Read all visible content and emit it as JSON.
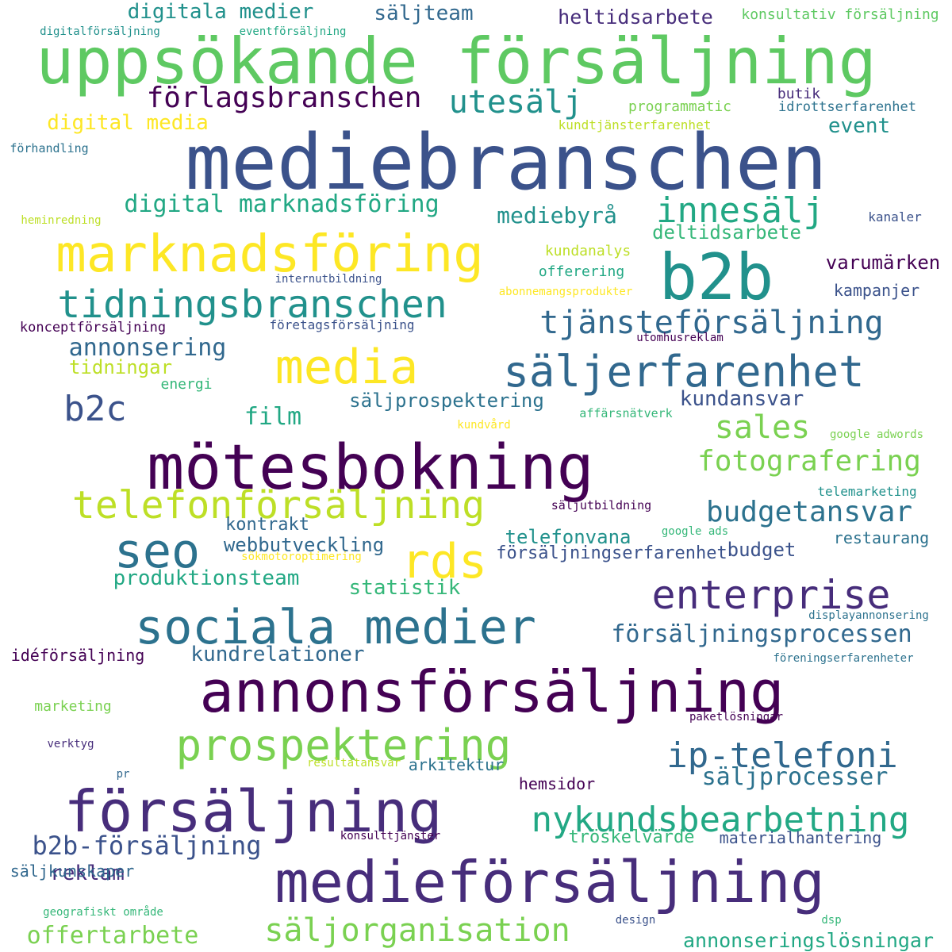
{
  "words": [
    {
      "text": "mediebranschen",
      "color": "#3b528b"
    },
    {
      "text": "uppsökande försäljning",
      "color": "#5ec962"
    },
    {
      "text": "mötesbokning",
      "color": "#440154"
    },
    {
      "text": "annonsförsäljning",
      "color": "#440154"
    },
    {
      "text": "medieförsäljning",
      "color": "#472d7b"
    },
    {
      "text": "försäljning",
      "color": "#472d7b"
    },
    {
      "text": "marknadsföring",
      "color": "#fde725"
    },
    {
      "text": "b2b",
      "color": "#21918c"
    },
    {
      "text": "sociala medier",
      "color": "#2c728e"
    },
    {
      "text": "media",
      "color": "#fde725"
    },
    {
      "text": "prospektering",
      "color": "#7ad151"
    },
    {
      "text": "säljerfarenhet",
      "color": "#31688e"
    },
    {
      "text": "enterprise",
      "color": "#472d7b"
    },
    {
      "text": "telefonförsäljning",
      "color": "#bddf26"
    },
    {
      "text": "tidningsbranschen",
      "color": "#21918c"
    },
    {
      "text": "seo",
      "color": "#2c728e"
    },
    {
      "text": "rds",
      "color": "#fde725"
    },
    {
      "text": "nykundsbearbetning",
      "color": "#22a884"
    },
    {
      "text": "ip-telefoni",
      "color": "#31688e"
    },
    {
      "text": "tjänsteförsäljning",
      "color": "#31688e"
    },
    {
      "text": "säljorganisation",
      "color": "#7ad151"
    },
    {
      "text": "förlagsbranschen",
      "color": "#440154"
    },
    {
      "text": "innesälj",
      "color": "#22a884"
    },
    {
      "text": "utesälj",
      "color": "#21918c"
    },
    {
      "text": "b2c",
      "color": "#3b528b"
    },
    {
      "text": "fotografering",
      "color": "#7ad151"
    },
    {
      "text": "budgetansvar",
      "color": "#2c728e"
    },
    {
      "text": "b2b-försäljning",
      "color": "#3b528b"
    },
    {
      "text": "försäljningsprocessen",
      "color": "#31688e"
    },
    {
      "text": "sales",
      "color": "#7ad151"
    },
    {
      "text": "offertarbete",
      "color": "#7ad151"
    },
    {
      "text": "digital marknadsföring",
      "color": "#22a884"
    },
    {
      "text": "annonsering",
      "color": "#31688e"
    },
    {
      "text": "säljprocesser",
      "color": "#2c728e"
    },
    {
      "text": "produktionsteam",
      "color": "#22a884"
    },
    {
      "text": "digitala medier",
      "color": "#21918c"
    },
    {
      "text": "annonseringslösningar",
      "color": "#22a884"
    },
    {
      "text": "heltidsarbete",
      "color": "#472d7b"
    },
    {
      "text": "kundrelationer",
      "color": "#31688e"
    },
    {
      "text": "reklam",
      "color": "#472d7b"
    },
    {
      "text": "film",
      "color": "#22a884"
    },
    {
      "text": "mediebyrå",
      "color": "#21918c"
    },
    {
      "text": "statistik",
      "color": "#35b779"
    },
    {
      "text": "digital media",
      "color": "#fde725"
    },
    {
      "text": "kundansvar",
      "color": "#3b528b"
    },
    {
      "text": "säljteam",
      "color": "#31688e"
    },
    {
      "text": "event",
      "color": "#21918c"
    },
    {
      "text": "telefonvana",
      "color": "#21918c"
    },
    {
      "text": "säljprospektering",
      "color": "#2c728e"
    },
    {
      "text": "varumärken",
      "color": "#440154"
    },
    {
      "text": "webbutveckling",
      "color": "#31688e"
    },
    {
      "text": "budget",
      "color": "#3b528b"
    },
    {
      "text": "deltidsarbete",
      "color": "#35b779"
    },
    {
      "text": "tidningar",
      "color": "#bddf26"
    },
    {
      "text": "försäljningserfarenhet",
      "color": "#3b528b"
    },
    {
      "text": "kontrakt",
      "color": "#31688e"
    },
    {
      "text": "tröskelvärde",
      "color": "#35b779"
    },
    {
      "text": "materialhantering",
      "color": "#3b528b"
    },
    {
      "text": "säljkunskaper",
      "color": "#31688e"
    },
    {
      "text": "restaurang",
      "color": "#2c728e"
    },
    {
      "text": "kampanjer",
      "color": "#3b528b"
    },
    {
      "text": "hemsidor",
      "color": "#440154"
    },
    {
      "text": "arkitektur",
      "color": "#2c728e"
    },
    {
      "text": "kundanalys",
      "color": "#bddf26"
    },
    {
      "text": "butik",
      "color": "#472d7b"
    },
    {
      "text": "offerering",
      "color": "#22a884"
    },
    {
      "text": "idéförsäljning",
      "color": "#440154"
    },
    {
      "text": "konsultativ försäljning",
      "color": "#5ec962"
    },
    {
      "text": "programmatic",
      "color": "#7ad151"
    },
    {
      "text": "marketing",
      "color": "#7ad151"
    },
    {
      "text": "energi",
      "color": "#35b779"
    },
    {
      "text": "idrottserfarenhet",
      "color": "#2c728e"
    },
    {
      "text": "konceptförsäljning",
      "color": "#440154"
    },
    {
      "text": "kanaler",
      "color": "#3b528b"
    },
    {
      "text": "kundtjänsterfarenhet",
      "color": "#bddf26"
    },
    {
      "text": "förhandling",
      "color": "#2c728e"
    },
    {
      "text": "telemarketing",
      "color": "#21918c"
    },
    {
      "text": "affärsnätverk",
      "color": "#35b779"
    },
    {
      "text": "digitalförsäljning",
      "color": "#21918c"
    },
    {
      "text": "eventförsäljning",
      "color": "#22a884"
    },
    {
      "text": "företagsförsäljning",
      "color": "#3b528b"
    },
    {
      "text": "internutbildning",
      "color": "#3b528b"
    },
    {
      "text": "säljutbildning",
      "color": "#440154"
    },
    {
      "text": "displayannonsering",
      "color": "#2c728e"
    },
    {
      "text": "google adwords",
      "color": "#7ad151"
    },
    {
      "text": "google ads",
      "color": "#35b779"
    },
    {
      "text": "föreningserfarenheter",
      "color": "#2c728e"
    },
    {
      "text": "paketlösningar",
      "color": "#440154"
    },
    {
      "text": "verktyg",
      "color": "#472d7b"
    },
    {
      "text": "utomhusreklam",
      "color": "#440154"
    },
    {
      "text": "heminredning",
      "color": "#bddf26"
    },
    {
      "text": "abonnemangsprodukter",
      "color": "#fde725"
    },
    {
      "text": "sökmotoroptimering",
      "color": "#fde725"
    },
    {
      "text": "kundvård",
      "color": "#fde725"
    },
    {
      "text": "resultatansvar",
      "color": "#bddf26"
    },
    {
      "text": "konsulttjänster",
      "color": "#440154"
    },
    {
      "text": "geografiskt område",
      "color": "#35b779"
    },
    {
      "text": "design",
      "color": "#3b528b"
    },
    {
      "text": "dsp",
      "color": "#35b779"
    },
    {
      "text": "pr",
      "color": "#31688e"
    }
  ]
}
